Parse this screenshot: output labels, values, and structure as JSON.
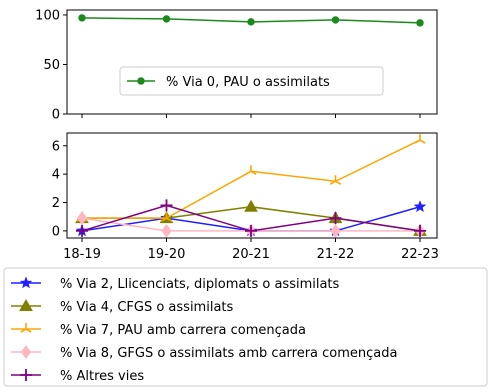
{
  "chart_data": [
    {
      "type": "line",
      "categories": [
        "18-19",
        "19-20",
        "20-21",
        "21-22",
        "22-23"
      ],
      "ylim": [
        0,
        105
      ],
      "yticks": [
        0,
        50,
        100
      ],
      "grid": false,
      "legend_position": "center",
      "series": [
        {
          "name": "% Via 0, PAU o assimilats",
          "color": "#1a8a1a",
          "marker": "circle",
          "values": [
            97,
            96,
            93,
            95,
            92
          ]
        }
      ]
    },
    {
      "type": "line",
      "categories": [
        "18-19",
        "19-20",
        "20-21",
        "21-22",
        "22-23"
      ],
      "ylim": [
        -0.5,
        6.9
      ],
      "yticks": [
        0,
        2,
        4,
        6
      ],
      "grid": false,
      "legend_position": "below",
      "series": [
        {
          "name": "% Via 2, Llicenciats, diplomats o assimilats",
          "color": "#1f1fff",
          "marker": "star",
          "values": [
            0.0,
            0.9,
            0.0,
            0.0,
            1.7
          ]
        },
        {
          "name": "% Via 4, CFGS o assimilats",
          "color": "#808000",
          "marker": "triangle",
          "values": [
            0.9,
            0.9,
            1.7,
            0.9,
            0.0
          ]
        },
        {
          "name": "% Via 7, PAU amb carrera començada",
          "color": "#ffa500",
          "marker": "tri",
          "values": [
            0.9,
            0.9,
            4.2,
            3.5,
            6.4
          ]
        },
        {
          "name": "% Via 8, GFGS o assimilats amb carrera començada",
          "color": "#ffb6c1",
          "marker": "diamond",
          "values": [
            0.9,
            0.0,
            0.0,
            0.0,
            0.0
          ]
        },
        {
          "name": "% Altres vies",
          "color": "#800080",
          "marker": "plus",
          "values": [
            0.0,
            1.8,
            0.0,
            0.9,
            0.0
          ]
        }
      ]
    }
  ]
}
